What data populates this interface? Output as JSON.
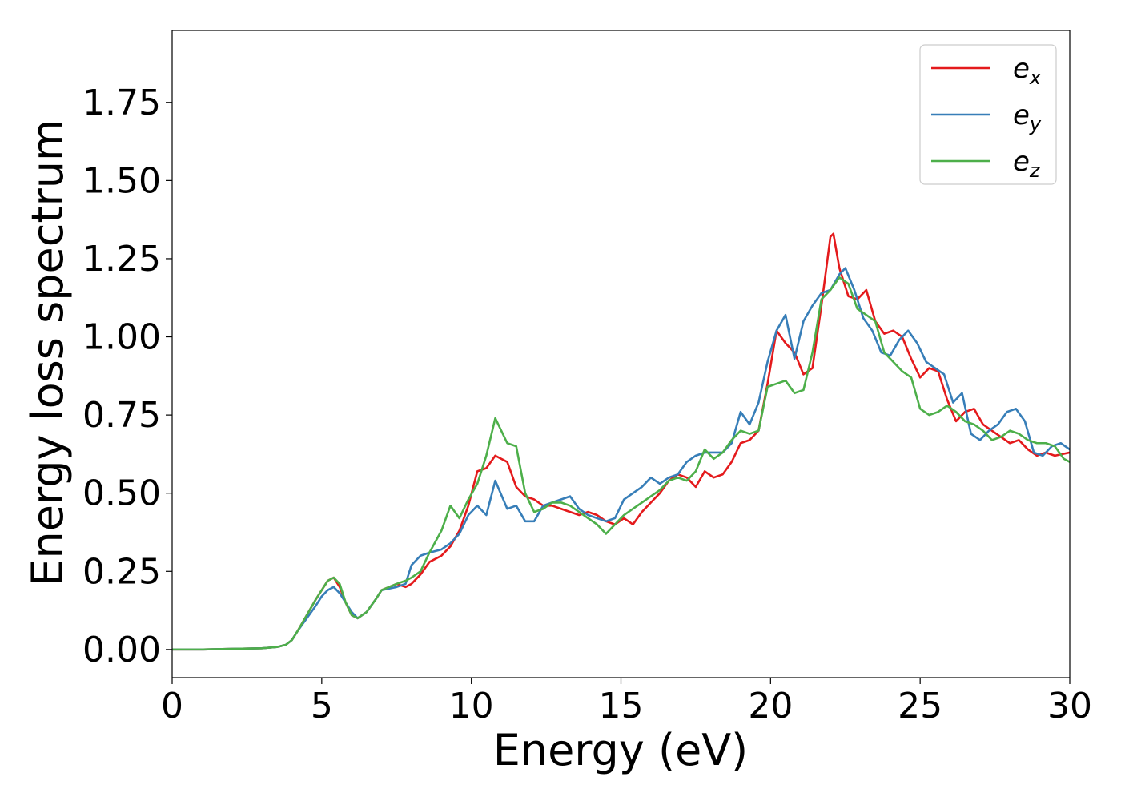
{
  "chart_data": {
    "type": "line",
    "title": "",
    "xlabel": "Energy (eV)",
    "ylabel": "Energy loss spectrum",
    "xlim": [
      0,
      30
    ],
    "ylim": [
      -0.09,
      1.98
    ],
    "xticks": [
      "0",
      "5",
      "10",
      "15",
      "20",
      "25",
      "30"
    ],
    "yticks": [
      "0.00",
      "0.25",
      "0.50",
      "0.75",
      "1.00",
      "1.25",
      "1.50",
      "1.75"
    ],
    "grid": false,
    "legend_position": "top-right",
    "series": [
      {
        "name": "e_x",
        "label_base": "e",
        "label_sub": "x",
        "color": "#e41a1c",
        "x": [
          0,
          1,
          2,
          3,
          3.5,
          3.8,
          4.0,
          4.2,
          4.5,
          4.8,
          5.0,
          5.2,
          5.4,
          5.6,
          5.8,
          6.0,
          6.2,
          6.5,
          6.8,
          7.0,
          7.5,
          7.8,
          8.0,
          8.3,
          8.6,
          9.0,
          9.3,
          9.6,
          9.9,
          10.2,
          10.5,
          10.8,
          11.2,
          11.5,
          11.8,
          12.1,
          12.4,
          12.7,
          13.0,
          13.3,
          13.6,
          13.9,
          14.2,
          14.5,
          14.8,
          15.1,
          15.4,
          15.7,
          16.0,
          16.3,
          16.6,
          16.9,
          17.2,
          17.5,
          17.8,
          18.1,
          18.4,
          18.7,
          19.0,
          19.3,
          19.6,
          19.9,
          20.2,
          20.5,
          20.8,
          21.1,
          21.4,
          21.7,
          22.0,
          22.1,
          22.3,
          22.6,
          22.9,
          23.2,
          23.5,
          23.8,
          24.1,
          24.4,
          24.7,
          25.0,
          25.3,
          25.6,
          25.9,
          26.2,
          26.5,
          26.8,
          27.1,
          27.4,
          27.7,
          28.0,
          28.3,
          28.6,
          28.9,
          29.2,
          29.5,
          30.0
        ],
        "y": [
          0.0,
          0.0,
          0.002,
          0.004,
          0.008,
          0.015,
          0.03,
          0.06,
          0.11,
          0.16,
          0.19,
          0.22,
          0.23,
          0.2,
          0.15,
          0.11,
          0.1,
          0.12,
          0.16,
          0.19,
          0.21,
          0.2,
          0.21,
          0.24,
          0.28,
          0.3,
          0.33,
          0.38,
          0.46,
          0.57,
          0.58,
          0.62,
          0.6,
          0.52,
          0.49,
          0.48,
          0.46,
          0.46,
          0.45,
          0.44,
          0.43,
          0.44,
          0.43,
          0.41,
          0.4,
          0.42,
          0.4,
          0.44,
          0.47,
          0.5,
          0.54,
          0.56,
          0.55,
          0.52,
          0.57,
          0.55,
          0.56,
          0.6,
          0.66,
          0.67,
          0.7,
          0.85,
          1.02,
          0.98,
          0.95,
          0.88,
          0.9,
          1.1,
          1.32,
          1.33,
          1.22,
          1.13,
          1.12,
          1.15,
          1.05,
          1.01,
          1.02,
          1.0,
          0.93,
          0.87,
          0.9,
          0.89,
          0.8,
          0.73,
          0.76,
          0.77,
          0.72,
          0.7,
          0.68,
          0.66,
          0.67,
          0.64,
          0.62,
          0.63,
          0.62,
          0.63
        ]
      },
      {
        "name": "e_y",
        "label_base": "e",
        "label_sub": "y",
        "color": "#377eb8",
        "x": [
          0,
          1,
          2,
          3,
          3.5,
          3.8,
          4.0,
          4.2,
          4.5,
          4.8,
          5.0,
          5.2,
          5.4,
          5.6,
          5.8,
          6.0,
          6.2,
          6.5,
          6.8,
          7.0,
          7.5,
          7.8,
          8.0,
          8.3,
          8.6,
          9.0,
          9.3,
          9.6,
          9.9,
          10.2,
          10.5,
          10.8,
          11.2,
          11.5,
          11.8,
          12.1,
          12.4,
          12.7,
          13.0,
          13.3,
          13.6,
          13.9,
          14.2,
          14.5,
          14.8,
          15.1,
          15.4,
          15.7,
          16.0,
          16.3,
          16.6,
          16.9,
          17.2,
          17.5,
          17.8,
          18.1,
          18.4,
          18.7,
          19.0,
          19.3,
          19.6,
          19.9,
          20.2,
          20.5,
          20.8,
          21.1,
          21.4,
          21.7,
          22.0,
          22.3,
          22.5,
          22.8,
          23.1,
          23.4,
          23.7,
          24.0,
          24.3,
          24.6,
          24.9,
          25.2,
          25.5,
          25.8,
          26.1,
          26.4,
          26.7,
          27.0,
          27.3,
          27.6,
          27.9,
          28.2,
          28.5,
          28.8,
          29.1,
          29.4,
          29.7,
          30.0
        ],
        "y": [
          0.0,
          0.0,
          0.002,
          0.004,
          0.008,
          0.015,
          0.03,
          0.06,
          0.1,
          0.14,
          0.17,
          0.19,
          0.2,
          0.18,
          0.15,
          0.12,
          0.1,
          0.12,
          0.16,
          0.19,
          0.2,
          0.21,
          0.27,
          0.3,
          0.31,
          0.32,
          0.34,
          0.37,
          0.43,
          0.46,
          0.43,
          0.54,
          0.45,
          0.46,
          0.41,
          0.41,
          0.46,
          0.47,
          0.48,
          0.49,
          0.45,
          0.43,
          0.42,
          0.41,
          0.42,
          0.48,
          0.5,
          0.52,
          0.55,
          0.53,
          0.55,
          0.56,
          0.6,
          0.62,
          0.63,
          0.63,
          0.63,
          0.66,
          0.76,
          0.72,
          0.79,
          0.92,
          1.02,
          1.07,
          0.93,
          1.05,
          1.1,
          1.14,
          1.15,
          1.2,
          1.22,
          1.15,
          1.06,
          1.02,
          0.95,
          0.94,
          0.99,
          1.02,
          0.98,
          0.92,
          0.9,
          0.88,
          0.79,
          0.82,
          0.69,
          0.67,
          0.7,
          0.72,
          0.76,
          0.77,
          0.73,
          0.63,
          0.62,
          0.65,
          0.66,
          0.64
        ]
      },
      {
        "name": "e_z",
        "label_base": "e",
        "label_sub": "z",
        "color": "#4daf4a",
        "x": [
          0,
          1,
          2,
          3,
          3.5,
          3.8,
          4.0,
          4.2,
          4.5,
          4.8,
          5.0,
          5.2,
          5.4,
          5.6,
          5.8,
          6.0,
          6.2,
          6.5,
          6.8,
          7.0,
          7.5,
          7.8,
          8.0,
          8.3,
          8.6,
          9.0,
          9.3,
          9.6,
          9.9,
          10.2,
          10.5,
          10.8,
          11.2,
          11.5,
          11.8,
          12.1,
          12.4,
          12.7,
          13.0,
          13.3,
          13.6,
          13.9,
          14.2,
          14.5,
          14.8,
          15.1,
          15.4,
          15.7,
          16.0,
          16.3,
          16.6,
          16.9,
          17.2,
          17.5,
          17.8,
          18.1,
          18.4,
          18.7,
          19.0,
          19.3,
          19.6,
          19.9,
          20.2,
          20.5,
          20.8,
          21.1,
          21.4,
          21.7,
          22.0,
          22.3,
          22.6,
          22.9,
          23.2,
          23.5,
          23.8,
          24.1,
          24.4,
          24.7,
          25.0,
          25.3,
          25.6,
          25.9,
          26.2,
          26.5,
          26.8,
          27.1,
          27.4,
          27.7,
          28.0,
          28.3,
          28.6,
          28.9,
          29.2,
          29.5,
          29.8,
          30.0
        ],
        "y": [
          0.0,
          0.0,
          0.002,
          0.004,
          0.008,
          0.015,
          0.03,
          0.06,
          0.11,
          0.16,
          0.19,
          0.22,
          0.23,
          0.21,
          0.15,
          0.11,
          0.1,
          0.12,
          0.16,
          0.19,
          0.21,
          0.22,
          0.23,
          0.25,
          0.31,
          0.38,
          0.46,
          0.42,
          0.48,
          0.53,
          0.62,
          0.74,
          0.66,
          0.65,
          0.5,
          0.44,
          0.45,
          0.47,
          0.47,
          0.46,
          0.44,
          0.42,
          0.4,
          0.37,
          0.4,
          0.43,
          0.45,
          0.47,
          0.49,
          0.51,
          0.54,
          0.55,
          0.54,
          0.57,
          0.64,
          0.61,
          0.63,
          0.67,
          0.7,
          0.69,
          0.7,
          0.84,
          0.85,
          0.86,
          0.82,
          0.83,
          0.95,
          1.12,
          1.15,
          1.19,
          1.17,
          1.09,
          1.07,
          1.05,
          0.95,
          0.92,
          0.89,
          0.87,
          0.77,
          0.75,
          0.76,
          0.78,
          0.76,
          0.73,
          0.72,
          0.7,
          0.67,
          0.68,
          0.7,
          0.69,
          0.67,
          0.66,
          0.66,
          0.65,
          0.61,
          0.6
        ]
      }
    ]
  }
}
